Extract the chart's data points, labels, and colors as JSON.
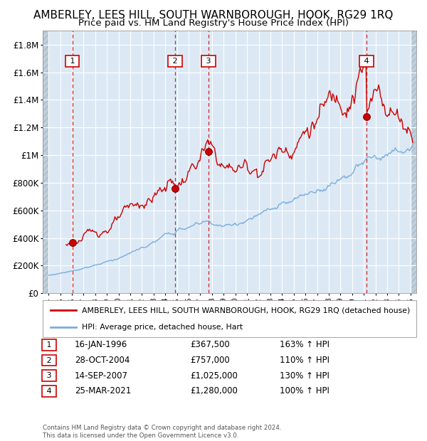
{
  "title": "AMBERLEY, LEES HILL, SOUTH WARNBOROUGH, HOOK, RG29 1RQ",
  "subtitle": "Price paid vs. HM Land Registry's House Price Index (HPI)",
  "legend_label_red": "AMBERLEY, LEES HILL, SOUTH WARNBOROUGH, HOOK, RG29 1RQ (detached house)",
  "legend_label_blue": "HPI: Average price, detached house, Hart",
  "footer": "Contains HM Land Registry data © Crown copyright and database right 2024.\nThis data is licensed under the Open Government Licence v3.0.",
  "sale_dates": [
    "16-JAN-1996",
    "28-OCT-2004",
    "14-SEP-2007",
    "25-MAR-2021"
  ],
  "sale_prices": [
    367500,
    757000,
    1025000,
    1280000
  ],
  "sale_hpi_pct": [
    "163% ↑ HPI",
    "110% ↑ HPI",
    "130% ↑ HPI",
    "100% ↑ HPI"
  ],
  "sale_years": [
    1996.04,
    2004.83,
    2007.71,
    2021.23
  ],
  "ylim": [
    0,
    1900000
  ],
  "yticks": [
    0,
    200000,
    400000,
    600000,
    800000,
    1000000,
    1200000,
    1400000,
    1600000,
    1800000
  ],
  "ytick_labels": [
    "£0",
    "£200K",
    "£400K",
    "£600K",
    "£800K",
    "£1M",
    "£1.2M",
    "£1.4M",
    "£1.6M",
    "£1.8M"
  ],
  "xlim_start": 1993.5,
  "xlim_end": 2025.5,
  "red_color": "#cc0000",
  "blue_color": "#7aaddc",
  "bg_color": "#dce9f5",
  "grid_color": "#ffffff",
  "hatch_color": "#bfcfdb",
  "box_color": "#cc0000",
  "dashed_color": "#cc0000",
  "title_fontsize": 11,
  "subtitle_fontsize": 9.5,
  "tick_fontsize": 8
}
